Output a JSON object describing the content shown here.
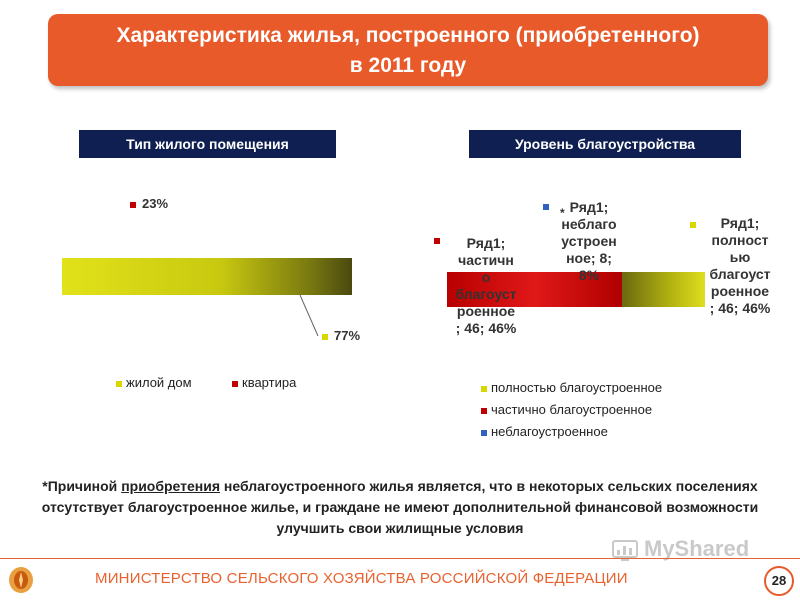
{
  "title": {
    "line1": "Характеристика жилья, построенного (приобретенного)",
    "line2": "в 2011 году"
  },
  "sections": {
    "left": "Тип жилого помещения",
    "right": "Уровень благоустройства"
  },
  "left_chart": {
    "label_apartment": "23%",
    "label_house": "77%",
    "legend": [
      "жилой дом",
      "квартира"
    ]
  },
  "right_chart": {
    "asterisk": "*",
    "label_unimproved": [
      "Ряд1;",
      "неблаго",
      "устроен",
      "ное; 8;",
      "8%"
    ],
    "label_partial": [
      "Ряд1;",
      "частичн",
      "о",
      "благоуст",
      "роенное",
      "; 46; 46%"
    ],
    "label_full": [
      "Ряд1;",
      "полност",
      "ью",
      "благоуст",
      "роенное",
      "; 46; 46%"
    ],
    "legend": [
      "полностью благоустроенное",
      "частично благоустроенное",
      "неблагоустроенное"
    ]
  },
  "chart_data": [
    {
      "type": "pie",
      "categories": [
        "жилой дом",
        "квартира"
      ],
      "values": [
        77,
        23
      ],
      "colors": [
        "#d8d800",
        "#c00000"
      ]
    },
    {
      "type": "pie",
      "categories": [
        "полностью благоустроенное",
        "частично благоустроенное",
        "неблагоустроенное"
      ],
      "values": [
        46,
        46,
        8
      ],
      "colors": [
        "#d0d000",
        "#e02020",
        "#3060c0"
      ]
    }
  ],
  "footnote": {
    "part1": "*Причиной ",
    "underlined": "приобретения",
    "part2": " неблагоустроенного жилья является, что в некоторых сельских поселениях отсутствует благоустроенное жилье, и граждане не имеют дополнительной финансовой возможности улучшить свои жилищные условия"
  },
  "footer": {
    "ministry": "МИНИСТЕРСТВО СЕЛЬСКОГО ХОЗЯЙСТВА РОССИЙСКОЙ ФЕДЕРАЦИИ",
    "page": "28",
    "watermark": "MyShared"
  },
  "colors": {
    "accent": "#e85a2a",
    "header_bg": "#0f1f52",
    "yellow": "#d8d800",
    "red": "#c00000",
    "blue": "#3060c0"
  }
}
